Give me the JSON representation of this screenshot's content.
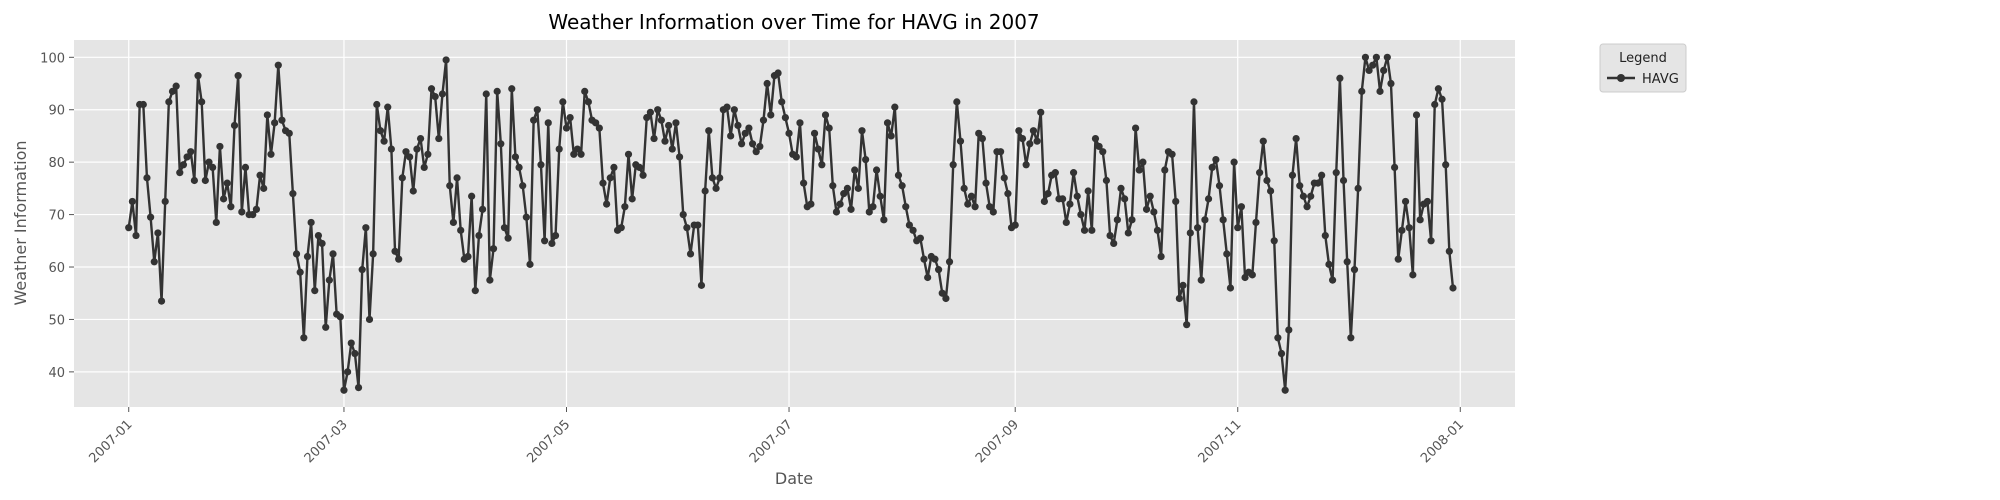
{
  "chart_data": {
    "type": "line",
    "title": "Weather Information over Time for HAVG in 2007",
    "xlabel": "Date",
    "ylabel": "Weather Information",
    "xlim": [
      "2006-12-17",
      "2008-01-16"
    ],
    "ylim": [
      33.3,
      103.3
    ],
    "x_ticks": [
      "2007-01",
      "2007-03",
      "2007-05",
      "2007-07",
      "2007-09",
      "2007-11",
      "2008-01"
    ],
    "y_ticks": [
      40,
      50,
      60,
      70,
      80,
      90,
      100
    ],
    "grid": true,
    "background": "#e5e5e5",
    "line_color": "#333333",
    "legend": {
      "title": "Legend",
      "position": "outside-right-top"
    },
    "series": [
      {
        "name": "HAVG",
        "start_date": "2007-01-01",
        "step_days": 1,
        "values": [
          67.5,
          72.5,
          66.0,
          91.0,
          91.0,
          77.0,
          69.5,
          61.0,
          66.5,
          53.5,
          72.5,
          91.5,
          93.5,
          94.5,
          78.0,
          79.5,
          81.0,
          82.0,
          76.5,
          96.5,
          91.5,
          76.5,
          80.0,
          79.0,
          68.5,
          83.0,
          73.0,
          76.0,
          71.5,
          87.0,
          96.5,
          70.5,
          79.0,
          70.0,
          70.0,
          71.0,
          77.5,
          75.0,
          89.0,
          81.5,
          87.5,
          98.5,
          88.0,
          86.0,
          85.5,
          74.0,
          62.5,
          59.0,
          46.5,
          62.0,
          68.5,
          55.5,
          66.0,
          64.5,
          48.5,
          57.5,
          62.5,
          51.0,
          50.5,
          36.5,
          40.0,
          45.5,
          43.5,
          37.0,
          59.5,
          67.5,
          50.0,
          62.5,
          91.0,
          86.0,
          84.0,
          90.5,
          82.5,
          63.0,
          61.5,
          77.0,
          82.0,
          81.0,
          74.5,
          82.5,
          84.5,
          79.0,
          81.5,
          94.0,
          92.5,
          84.5,
          93.0,
          99.5,
          75.5,
          68.5,
          77.0,
          67.0,
          61.5,
          62.0,
          73.5,
          55.5,
          66.0,
          71.0,
          93.0,
          57.5,
          63.5,
          93.5,
          83.5,
          67.5,
          65.5,
          94.0,
          81.0,
          79.0,
          75.5,
          69.5,
          60.5,
          88.0,
          90.0,
          79.5,
          65.0,
          87.5,
          64.5,
          66.0,
          82.5,
          91.5,
          86.5,
          88.5,
          81.5,
          82.5,
          81.5,
          93.5,
          91.5,
          88.0,
          87.5,
          86.5,
          76.0,
          72.0,
          77.0,
          79.0,
          67.0,
          67.5,
          71.5,
          81.5,
          73.0,
          79.5,
          79.0,
          77.5,
          88.5,
          89.5,
          84.5,
          90.0,
          88.0,
          84.0,
          87.0,
          82.5,
          87.5,
          81.0,
          70.0,
          67.5,
          62.5,
          68.0,
          68.0,
          56.5,
          74.5,
          86.0,
          77.0,
          75.0,
          77.0,
          90.0,
          90.5,
          85.0,
          90.0,
          87.0,
          83.5,
          85.5,
          86.5,
          83.5,
          82.0,
          83.0,
          88.0,
          95.0,
          89.0,
          96.5,
          97.0,
          91.5,
          88.5,
          85.5,
          81.5,
          81.0,
          87.5,
          76.0,
          71.5,
          72.0,
          85.5,
          82.5,
          79.5,
          89.0,
          86.5,
          75.5,
          70.5,
          72.0,
          74.0,
          75.0,
          71.0,
          78.5,
          75.0,
          86.0,
          80.5,
          70.5,
          71.5,
          78.5,
          73.5,
          69.0,
          87.5,
          85.0,
          90.5,
          77.5,
          75.5,
          71.5,
          68.0,
          67.0,
          65.0,
          65.5,
          61.5,
          58.0,
          62.0,
          61.5,
          59.5,
          55.0,
          54.0,
          61.0,
          79.5,
          91.5,
          84.0,
          75.0,
          72.0,
          73.5,
          71.5,
          85.5,
          84.5,
          76.0,
          71.5,
          70.5,
          82.0,
          82.0,
          77.0,
          74.0,
          67.5,
          68.0,
          86.0,
          84.5,
          79.5,
          83.5,
          86.0,
          84.0,
          89.5,
          72.5,
          74.0,
          77.5,
          78.0,
          73.0,
          73.0,
          68.5,
          72.0,
          78.0,
          73.5,
          70.0,
          67.0,
          74.5,
          67.0,
          84.5,
          83.0,
          82.0,
          76.5,
          66.0,
          64.5,
          69.0,
          75.0,
          73.0,
          66.5,
          69.0,
          86.5,
          78.5,
          80.0,
          71.0,
          73.5,
          70.5,
          67.0,
          62.0,
          78.5,
          82.0,
          81.5,
          72.5,
          54.0,
          56.5,
          49.0,
          66.5,
          91.5,
          67.5,
          57.5,
          69.0,
          73.0,
          79.0,
          80.5,
          75.5,
          69.0,
          62.5,
          56.0,
          80.0,
          67.5,
          71.5,
          58.0,
          59.0,
          58.5,
          68.5,
          78.0,
          84.0,
          76.5,
          74.5,
          65.0,
          46.5,
          43.5,
          36.5,
          48.0,
          77.5,
          84.5,
          75.5,
          73.5,
          71.5,
          73.5,
          76.0,
          76.0,
          77.5,
          66.0,
          60.5,
          57.5,
          78.0,
          96.0,
          76.5,
          61.0,
          46.5,
          59.5,
          75.0,
          93.5,
          100.0,
          97.5,
          98.5,
          100.0,
          93.5,
          97.5,
          100.0,
          95.0,
          79.0,
          61.5,
          67.0,
          72.5,
          67.5,
          58.5,
          89.0,
          69.0,
          72.0,
          72.5,
          65.0,
          91.0,
          94.0,
          92.0,
          79.5,
          63.0,
          56.0
        ]
      }
    ]
  }
}
